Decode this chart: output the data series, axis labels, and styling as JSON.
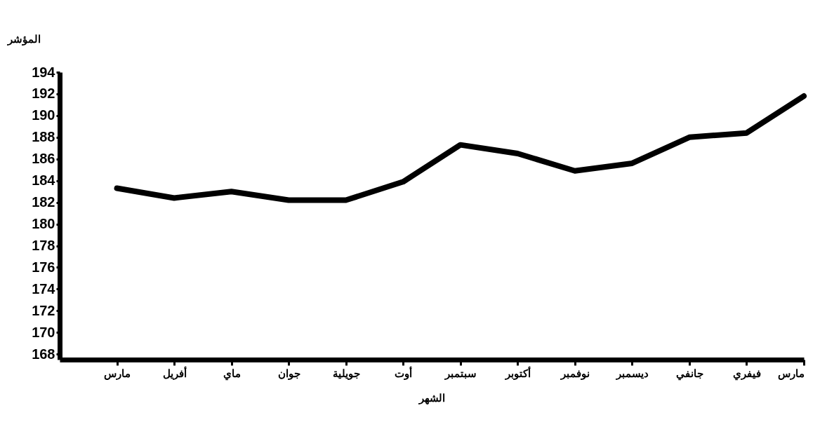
{
  "chart_data": {
    "type": "line",
    "xlabel": "الشهر",
    "ylabel": "المؤشر",
    "categories": [
      "مارس",
      "أفريل",
      "ماي",
      "جوان",
      "جويلية",
      "أوت",
      "سبتمبر",
      "أكتوبر",
      "نوفمبر",
      "ديسمبر",
      "جانفي",
      "فيفري",
      "مارس"
    ],
    "series": [
      {
        "color": "#000000",
        "values": [
          183.3,
          182.4,
          183.0,
          182.2,
          182.2,
          183.9,
          187.3,
          186.5,
          184.9,
          185.6,
          188.0,
          188.4,
          191.8
        ]
      }
    ],
    "ylim": [
      167.5,
      194
    ],
    "yticks": [
      168,
      170,
      172,
      174,
      176,
      178,
      180,
      182,
      184,
      186,
      188,
      190,
      192,
      194
    ],
    "grid": false,
    "marker": "none"
  }
}
